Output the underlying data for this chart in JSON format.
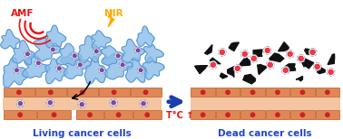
{
  "bg_color": "#ffffff",
  "arrow_color": "#1a3faa",
  "tissue_tile_color": "#e08855",
  "tissue_mid_color": "#f5c4a0",
  "tissue_line_color": "#c06838",
  "cell_dot_color": "#cc2222",
  "living_cell_fill": "#88bbe8",
  "living_cell_edge": "#4488cc",
  "dead_cell_color": "#111111",
  "dead_nano_fill": "#ff4455",
  "dead_nano_shell": "#aaaacc",
  "amf_color": "#ee1111",
  "nir_color": "#ffaa00",
  "label_left": "Living cancer cells",
  "label_right": "Dead cancer cells",
  "label_color": "#2244cc",
  "temp_label": "T°C ↑",
  "temp_color": "#ee1111",
  "amf_text": "AMF",
  "nir_text": "NIR",
  "fig_width": 3.78,
  "fig_height": 1.54,
  "dpi": 100
}
